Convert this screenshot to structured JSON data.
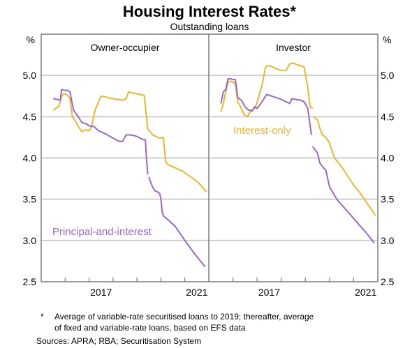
{
  "chart_data": {
    "type": "line",
    "title": "Housing Interest Rates*",
    "subtitle": "Outstanding loans",
    "ylabel_left": "%",
    "ylabel_right": "%",
    "ylim": [
      2.5,
      5.5
    ],
    "yticks": [
      "2.5",
      "3.0",
      "3.5",
      "4.0",
      "4.5",
      "5.0"
    ],
    "grid": true,
    "xlim": [
      2015,
      2022
    ],
    "xtick_labels": [
      {
        "label": "2017",
        "year": 2017.5
      },
      {
        "label": "2021",
        "year": 2021.5
      }
    ],
    "colors": {
      "principal_and_interest": "#9966cc",
      "interest_only": "#f0b429"
    },
    "panels": [
      {
        "title": "Owner-occupier",
        "series": [
          {
            "name": "Interest-only",
            "key": "interest_only",
            "x": [
              2015.5,
              2015.6,
              2015.75,
              2015.85,
              2015.95,
              2016.1,
              2016.2,
              2016.3,
              2016.4,
              2016.55,
              2016.7,
              2016.85,
              2017.0,
              2017.1,
              2017.25,
              2017.5,
              2017.7,
              2017.9,
              2018.0,
              2018.1,
              2018.2,
              2018.4,
              2018.55,
              2018.65,
              2018.8,
              2018.95,
              2019.0,
              2019.1,
              2019.3,
              2019.45,
              2019.55,
              2019.6,
              2019.65,
              2019.8,
              2019.95,
              2020.1,
              2020.2,
              2020.3,
              2020.45,
              2020.6,
              2020.75,
              2020.9,
              2021.0,
              2021.2,
              2021.4,
              2021.6,
              2021.9
            ],
            "y": [
              4.58,
              4.6,
              4.63,
              4.75,
              4.78,
              4.76,
              4.72,
              4.5,
              4.46,
              4.38,
              4.32,
              4.34,
              4.33,
              4.38,
              4.58,
              4.75,
              4.74,
              4.72,
              4.72,
              4.71,
              4.71,
              4.7,
              4.72,
              4.8,
              4.79,
              4.78,
              4.78,
              4.77,
              4.76,
              4.35,
              4.32,
              4.3,
              4.28,
              4.26,
              4.24,
              4.25,
              3.95,
              3.92,
              3.9,
              3.88,
              3.86,
              3.84,
              3.82,
              3.78,
              3.74,
              3.69,
              3.59
            ]
          },
          {
            "name": "Principal-and-interest",
            "key": "principal_and_interest",
            "x": [
              2015.5,
              2015.65,
              2015.8,
              2015.85,
              2015.95,
              2016.1,
              2016.2,
              2016.35,
              2016.5,
              2016.7,
              2016.9,
              2017.0,
              2017.2,
              2017.4,
              2017.7,
              2018.0,
              2018.2,
              2018.3,
              2018.4,
              2018.55,
              2018.7,
              2018.9,
              2019.0,
              2019.2,
              2019.35,
              2019.4,
              2019.45,
              "gap",
              2019.5,
              2019.55,
              2019.65,
              2019.75,
              2019.85,
              2019.95,
              2020.0,
              2020.05,
              2020.1,
              2020.3,
              2020.6,
              2021.0,
              2021.4,
              2021.85
            ],
            "y": [
              4.72,
              4.71,
              4.7,
              4.83,
              4.82,
              4.82,
              4.8,
              4.58,
              4.52,
              4.43,
              4.41,
              4.39,
              4.38,
              4.33,
              4.29,
              4.24,
              4.21,
              4.2,
              4.2,
              4.28,
              4.28,
              4.27,
              4.26,
              4.23,
              4.22,
              3.98,
              3.8,
              null,
              3.77,
              3.72,
              3.65,
              3.6,
              3.59,
              3.57,
              3.5,
              3.35,
              3.3,
              3.25,
              3.17,
              3.0,
              2.84,
              2.68
            ]
          }
        ],
        "annotations": [
          {
            "text": "Principal-and-interest",
            "series": "principal_and_interest"
          }
        ]
      },
      {
        "title": "Investor",
        "series": [
          {
            "name": "Interest-only",
            "key": "interest_only",
            "x": [
              2015.5,
              2015.6,
              2015.7,
              2015.8,
              2015.9,
              2016.0,
              2016.1,
              2016.2,
              2016.3,
              2016.45,
              2016.6,
              2016.75,
              2016.9,
              2017.0,
              2017.2,
              2017.35,
              2017.45,
              2017.6,
              2017.8,
              2018.0,
              2018.2,
              2018.35,
              2018.5,
              2018.65,
              2018.8,
              2018.95,
              2019.1,
              2019.2,
              2019.3,
              "gap",
              2019.35,
              2019.5,
              2019.6,
              2019.7,
              2019.85,
              2020.0,
              2020.2,
              2020.4,
              2020.6,
              2020.8,
              2021.0,
              2021.2,
              2021.4,
              2021.6,
              2021.8,
              2021.9
            ],
            "y": [
              4.56,
              4.66,
              4.8,
              4.92,
              4.93,
              4.92,
              4.9,
              4.68,
              4.63,
              4.53,
              4.5,
              4.58,
              4.6,
              4.67,
              4.88,
              5.1,
              5.12,
              5.11,
              5.08,
              5.06,
              5.06,
              5.14,
              5.15,
              5.13,
              5.12,
              5.1,
              4.85,
              4.62,
              4.6,
              null,
              4.5,
              4.46,
              4.36,
              4.28,
              4.25,
              4.18,
              4.0,
              3.93,
              3.85,
              3.76,
              3.67,
              3.6,
              3.52,
              3.43,
              3.35,
              3.3
            ]
          },
          {
            "name": "Principal-and-interest",
            "key": "principal_and_interest",
            "x": [
              2015.5,
              2015.6,
              2015.7,
              2015.8,
              2015.9,
              2016.0,
              2016.1,
              2016.2,
              2016.35,
              2016.5,
              2016.65,
              2016.8,
              2016.9,
              2017.0,
              2017.2,
              2017.4,
              2017.7,
              2018.0,
              2018.2,
              2018.35,
              2018.45,
              2018.6,
              2018.8,
              2018.95,
              2019.1,
              2019.25,
              "gap",
              2019.3,
              2019.4,
              2019.5,
              2019.6,
              2019.75,
              2019.85,
              2020.0,
              2020.1,
              2020.3,
              2020.6,
              2020.9,
              2021.2,
              2021.5,
              2021.85
            ],
            "y": [
              4.66,
              4.8,
              4.83,
              4.96,
              4.96,
              4.95,
              4.95,
              4.73,
              4.7,
              4.62,
              4.58,
              4.57,
              4.62,
              4.6,
              4.68,
              4.77,
              4.74,
              4.71,
              4.68,
              4.66,
              4.72,
              4.71,
              4.7,
              4.68,
              4.6,
              4.28,
              null,
              4.14,
              4.1,
              4.06,
              3.94,
              3.88,
              3.85,
              3.65,
              3.6,
              3.5,
              3.4,
              3.3,
              3.2,
              3.1,
              2.97
            ]
          }
        ],
        "annotations": [
          {
            "text": "Interest-only",
            "series": "interest_only"
          }
        ]
      }
    ],
    "footnote_marker": "*",
    "footnote_lines": [
      "Average of variable-rate securitised loans to 2019; thereafter, average",
      "of fixed and variable-rate loans, based on EFS data"
    ],
    "sources": "Sources: APRA; RBA; Securitisation System"
  }
}
